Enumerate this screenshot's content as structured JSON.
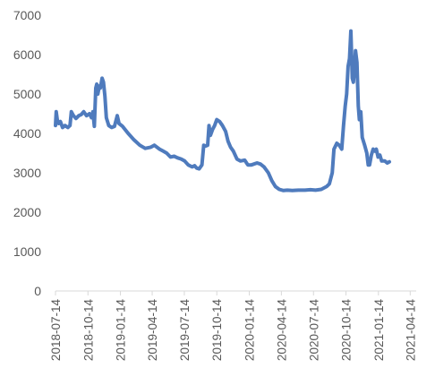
{
  "chart_data": {
    "type": "line",
    "title": "",
    "xlabel": "",
    "ylabel": "",
    "ylim": [
      0,
      7000
    ],
    "yticks": [
      0,
      1000,
      2000,
      3000,
      4000,
      5000,
      6000,
      7000
    ],
    "ytick_labels": [
      "0",
      "1000",
      "2000",
      "3000",
      "4000",
      "5000",
      "6000",
      "7000"
    ],
    "xtick_labels": [
      "2018-07-14",
      "2018-10-14",
      "2019-01-14",
      "2019-04-14",
      "2019-07-14",
      "2019-10-14",
      "2020-01-14",
      "2020-04-14",
      "2020-07-14",
      "2020-10-14",
      "2021-01-14",
      "2021-04-14"
    ],
    "xtick_dates": [
      "2018-07-14",
      "2018-10-14",
      "2019-01-14",
      "2019-04-14",
      "2019-07-14",
      "2019-10-14",
      "2020-01-14",
      "2020-04-14",
      "2020-07-14",
      "2020-10-14",
      "2021-01-14",
      "2021-04-14"
    ],
    "x_range": [
      "2018-07-14",
      "2021-05-01"
    ],
    "grid": false,
    "line_color": "#4f7bbd",
    "axis_color": "#d9d9d9",
    "series": [
      {
        "name": "",
        "points": [
          [
            "2018-07-14",
            4200
          ],
          [
            "2018-07-16",
            4550
          ],
          [
            "2018-07-19",
            4350
          ],
          [
            "2018-07-23",
            4250
          ],
          [
            "2018-07-28",
            4300
          ],
          [
            "2018-08-03",
            4150
          ],
          [
            "2018-08-10",
            4200
          ],
          [
            "2018-08-18",
            4150
          ],
          [
            "2018-08-24",
            4200
          ],
          [
            "2018-08-28",
            4550
          ],
          [
            "2018-09-03",
            4450
          ],
          [
            "2018-09-10",
            4380
          ],
          [
            "2018-09-18",
            4450
          ],
          [
            "2018-09-25",
            4480
          ],
          [
            "2018-10-02",
            4550
          ],
          [
            "2018-10-10",
            4450
          ],
          [
            "2018-10-18",
            4500
          ],
          [
            "2018-10-24",
            4400
          ],
          [
            "2018-10-28",
            4550
          ],
          [
            "2018-11-01",
            4180
          ],
          [
            "2018-11-05",
            5150
          ],
          [
            "2018-11-08",
            5250
          ],
          [
            "2018-11-11",
            5000
          ],
          [
            "2018-11-15",
            5200
          ],
          [
            "2018-11-18",
            5150
          ],
          [
            "2018-11-23",
            5400
          ],
          [
            "2018-11-27",
            5300
          ],
          [
            "2018-12-01",
            4950
          ],
          [
            "2018-12-05",
            4400
          ],
          [
            "2018-12-12",
            4200
          ],
          [
            "2018-12-20",
            4150
          ],
          [
            "2018-12-28",
            4180
          ],
          [
            "2019-01-05",
            4450
          ],
          [
            "2019-01-10",
            4250
          ],
          [
            "2019-01-20",
            4180
          ],
          [
            "2019-02-05",
            4000
          ],
          [
            "2019-02-20",
            3850
          ],
          [
            "2019-03-10",
            3700
          ],
          [
            "2019-03-25",
            3620
          ],
          [
            "2019-04-10",
            3650
          ],
          [
            "2019-04-20",
            3700
          ],
          [
            "2019-05-05",
            3600
          ],
          [
            "2019-05-15",
            3550
          ],
          [
            "2019-05-25",
            3500
          ],
          [
            "2019-06-05",
            3400
          ],
          [
            "2019-06-15",
            3420
          ],
          [
            "2019-06-25",
            3380
          ],
          [
            "2019-07-05",
            3350
          ],
          [
            "2019-07-15",
            3300
          ],
          [
            "2019-07-25",
            3200
          ],
          [
            "2019-08-05",
            3150
          ],
          [
            "2019-08-12",
            3180
          ],
          [
            "2019-08-18",
            3120
          ],
          [
            "2019-08-25",
            3100
          ],
          [
            "2019-09-02",
            3200
          ],
          [
            "2019-09-07",
            3700
          ],
          [
            "2019-09-12",
            3680
          ],
          [
            "2019-09-18",
            3700
          ],
          [
            "2019-09-22",
            4200
          ],
          [
            "2019-09-26",
            3950
          ],
          [
            "2019-10-02",
            4100
          ],
          [
            "2019-10-08",
            4200
          ],
          [
            "2019-10-14",
            4350
          ],
          [
            "2019-10-22",
            4300
          ],
          [
            "2019-10-30",
            4200
          ],
          [
            "2019-11-08",
            4050
          ],
          [
            "2019-11-15",
            3800
          ],
          [
            "2019-11-22",
            3650
          ],
          [
            "2019-11-30",
            3550
          ],
          [
            "2019-12-10",
            3350
          ],
          [
            "2019-12-20",
            3300
          ],
          [
            "2020-01-01",
            3320
          ],
          [
            "2020-01-10",
            3200
          ],
          [
            "2020-01-20",
            3200
          ],
          [
            "2020-02-05",
            3250
          ],
          [
            "2020-02-15",
            3220
          ],
          [
            "2020-02-25",
            3150
          ],
          [
            "2020-03-08",
            3000
          ],
          [
            "2020-03-18",
            2800
          ],
          [
            "2020-03-28",
            2650
          ],
          [
            "2020-04-08",
            2580
          ],
          [
            "2020-04-20",
            2550
          ],
          [
            "2020-05-01",
            2560
          ],
          [
            "2020-05-15",
            2550
          ],
          [
            "2020-06-01",
            2560
          ],
          [
            "2020-06-20",
            2560
          ],
          [
            "2020-07-05",
            2570
          ],
          [
            "2020-07-20",
            2560
          ],
          [
            "2020-08-05",
            2580
          ],
          [
            "2020-08-20",
            2650
          ],
          [
            "2020-08-28",
            2720
          ],
          [
            "2020-09-05",
            3000
          ],
          [
            "2020-09-10",
            3600
          ],
          [
            "2020-09-18",
            3750
          ],
          [
            "2020-09-25",
            3700
          ],
          [
            "2020-10-02",
            3600
          ],
          [
            "2020-10-07",
            4200
          ],
          [
            "2020-10-12",
            4700
          ],
          [
            "2020-10-16",
            5000
          ],
          [
            "2020-10-20",
            5700
          ],
          [
            "2020-10-24",
            5900
          ],
          [
            "2020-10-28",
            6600
          ],
          [
            "2020-11-01",
            5400
          ],
          [
            "2020-11-04",
            5300
          ],
          [
            "2020-11-07",
            5600
          ],
          [
            "2020-11-10",
            6100
          ],
          [
            "2020-11-14",
            5800
          ],
          [
            "2020-11-18",
            4700
          ],
          [
            "2020-11-21",
            4350
          ],
          [
            "2020-11-25",
            4550
          ],
          [
            "2020-11-29",
            3900
          ],
          [
            "2020-12-06",
            3700
          ],
          [
            "2020-12-12",
            3500
          ],
          [
            "2020-12-16",
            3200
          ],
          [
            "2020-12-20",
            3200
          ],
          [
            "2020-12-25",
            3450
          ],
          [
            "2020-12-30",
            3600
          ],
          [
            "2021-01-04",
            3550
          ],
          [
            "2021-01-08",
            3600
          ],
          [
            "2021-01-13",
            3400
          ],
          [
            "2021-01-18",
            3450
          ],
          [
            "2021-01-23",
            3300
          ],
          [
            "2021-02-01",
            3300
          ],
          [
            "2021-02-08",
            3250
          ],
          [
            "2021-02-14",
            3280
          ]
        ]
      }
    ]
  }
}
